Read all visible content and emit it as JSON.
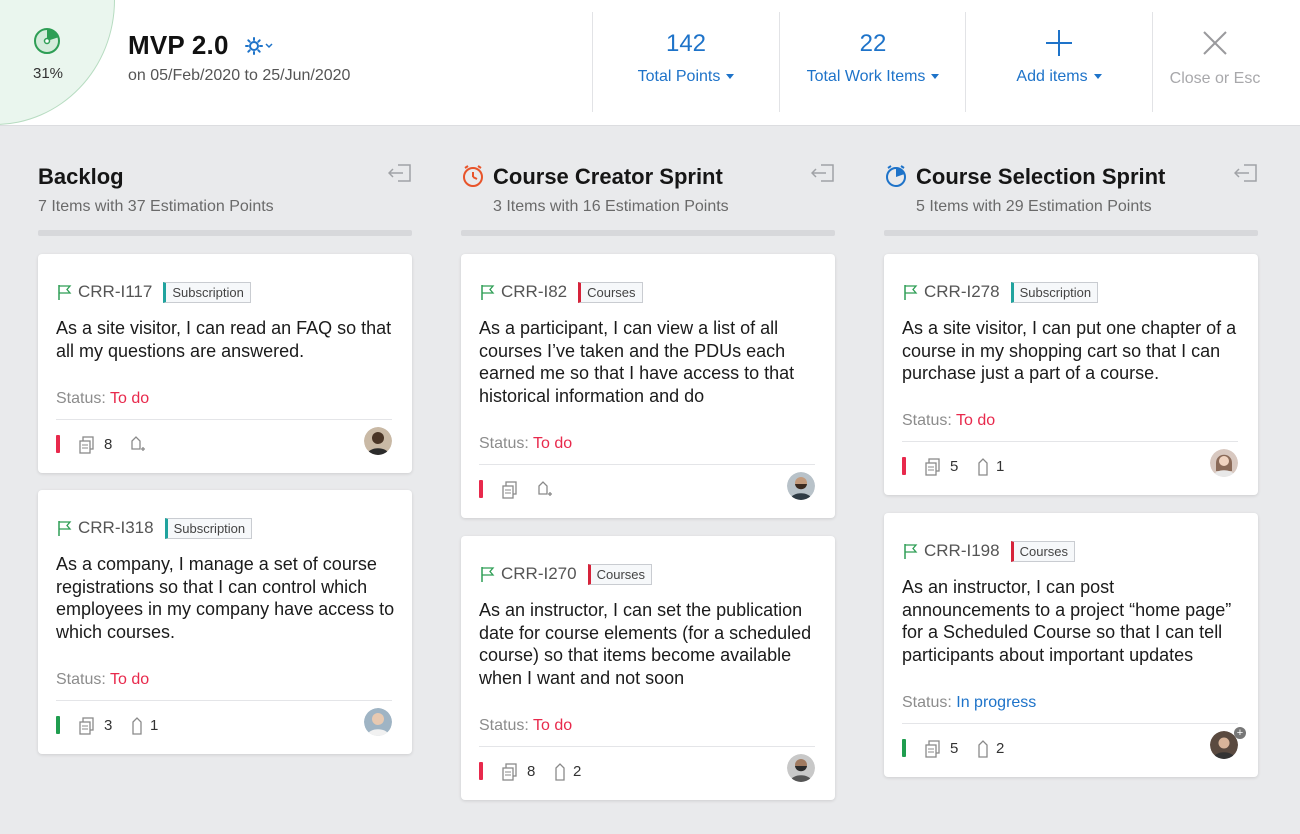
{
  "header": {
    "progress_percent": "31%",
    "progress_value": 0.31,
    "project_title": "MVP 2.0",
    "project_dates": "on 05/Feb/2020 to 25/Jun/2020",
    "total_points_value": "142",
    "total_points_label": "Total Points",
    "total_work_items_value": "22",
    "total_work_items_label": "Total Work Items",
    "add_items_label": "Add items",
    "close_label": "Close or Esc"
  },
  "colors": {
    "accent": "#1e73c9",
    "todo": "#e8294c",
    "in_progress": "#1e73c9",
    "tag_subscription": "#20a39e",
    "tag_courses": "#d6233a",
    "priority_high": "#e8294c",
    "priority_low": "#1f9d4f"
  },
  "columns": [
    {
      "title": "Backlog",
      "subtitle": "7 Items with 37 Estimation Points",
      "icon": null,
      "cards": [
        {
          "id": "CRR-I117",
          "tag": "Subscription",
          "text": "As a site visitor, I can read an FAQ so that all my questions are answered.",
          "status_label": "Status:",
          "status": "To do",
          "subtasks": "8",
          "attachments": "",
          "priority": "high",
          "avatar": "avatar-person-icon"
        },
        {
          "id": "CRR-I318",
          "tag": "Subscription",
          "text": "As a company, I manage a set of course registrations so that I can control which employees in my company have access to which courses.",
          "status_label": "Status:",
          "status": "To do",
          "subtasks": "3",
          "attachments": "1",
          "priority": "low",
          "avatar": "avatar-person-icon"
        }
      ]
    },
    {
      "title": "Course Creator Sprint",
      "subtitle": "3 Items with 16 Estimation Points",
      "icon": "sprint-timer-orange-icon",
      "cards": [
        {
          "id": "CRR-I82",
          "tag": "Courses",
          "text": "As a participant, I can view a list of all courses I’ve taken and the PDUs each earned me so that I have access to that historical information and do",
          "status_label": "Status:",
          "status": "To do",
          "subtasks": "",
          "attachments": "",
          "priority": "high",
          "avatar": "avatar-person-icon"
        },
        {
          "id": "CRR-I270",
          "tag": "Courses",
          "text": "As an instructor, I can set the publication date for course elements (for a scheduled course) so that items become available when I want and not soon",
          "status_label": "Status:",
          "status": "To do",
          "subtasks": "8",
          "attachments": "2",
          "priority": "high",
          "avatar": "avatar-person-icon"
        }
      ]
    },
    {
      "title": "Course Selection Sprint",
      "subtitle": "5 Items with 29 Estimation Points",
      "icon": "sprint-timer-blue-icon",
      "cards": [
        {
          "id": "CRR-I278",
          "tag": "Subscription",
          "text": "As a site visitor, I can put one chapter of a course in my shopping cart so that I can purchase just a part of a course.",
          "status_label": "Status:",
          "status": "To do",
          "subtasks": "5",
          "attachments": "1",
          "priority": "high",
          "avatar": "avatar-person-icon"
        },
        {
          "id": "CRR-I198",
          "tag": "Courses",
          "text": "As an instructor, I can post announcements to a project “home page” for a Scheduled Course so that I can tell participants about important updates",
          "status_label": "Status:",
          "status": "In progress",
          "subtasks": "5",
          "attachments": "2",
          "priority": "low",
          "avatar": "avatar-person-icon"
        }
      ]
    }
  ]
}
